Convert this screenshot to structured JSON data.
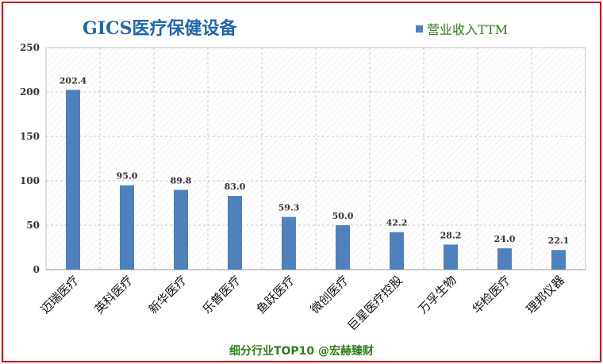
{
  "chart_data": {
    "type": "bar",
    "title": "GICS医疗保健设备",
    "categories": [
      "迈瑞医疗",
      "英科医疗",
      "新华医疗",
      "乐普医疗",
      "鱼跃医疗",
      "微创医疗",
      "巨星医疗控股",
      "万孚生物",
      "华检医疗",
      "理邦仪器"
    ],
    "series": [
      {
        "name": "营业收入TTM",
        "values": [
          202.4,
          95.0,
          89.8,
          83.0,
          59.3,
          50.0,
          42.2,
          28.2,
          24.0,
          22.1
        ],
        "labels": [
          "202.4",
          "95.0",
          "89.8",
          "83.0",
          "59.3",
          "50.0",
          "42.2",
          "28.2",
          "24.0",
          "22.1"
        ]
      }
    ],
    "ylim": [
      0,
      250
    ],
    "yticks": [
      "0",
      "50",
      "100",
      "150",
      "200",
      "250"
    ],
    "grid": true,
    "legend_position": "top-right",
    "bar_color": "#4f81bd"
  },
  "footer": "细分行业TOP10 @宏赫臻财",
  "colors": {
    "border": "#c00000",
    "title": "#2266aa",
    "legend_text": "#2e7d1a",
    "footer_text": "#2e7d1a"
  }
}
